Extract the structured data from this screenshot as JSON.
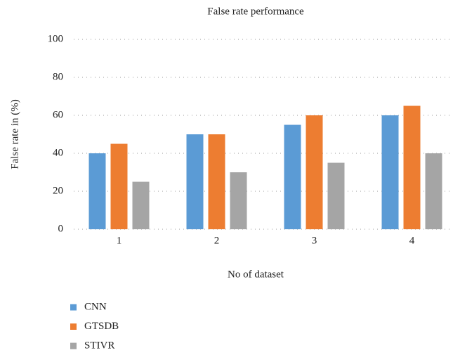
{
  "chart_data": {
    "type": "bar",
    "title": "False rate performance",
    "x_label": "No of dataset",
    "y_label": "False rate in (%)",
    "categories": [
      "1",
      "2",
      "3",
      "4"
    ],
    "series": [
      {
        "name": "CNN",
        "color": "#5b9bd5",
        "values": [
          40,
          50,
          55,
          60
        ]
      },
      {
        "name": "GTSDB",
        "color": "#ed7d31",
        "values": [
          45,
          50,
          60,
          65
        ]
      },
      {
        "name": "STIVR",
        "color": "#a5a5a5",
        "values": [
          25,
          30,
          35,
          40
        ]
      }
    ],
    "ylim": [
      0,
      100
    ],
    "yticks": [
      0,
      20,
      40,
      60,
      80,
      100
    ],
    "grid": true
  }
}
